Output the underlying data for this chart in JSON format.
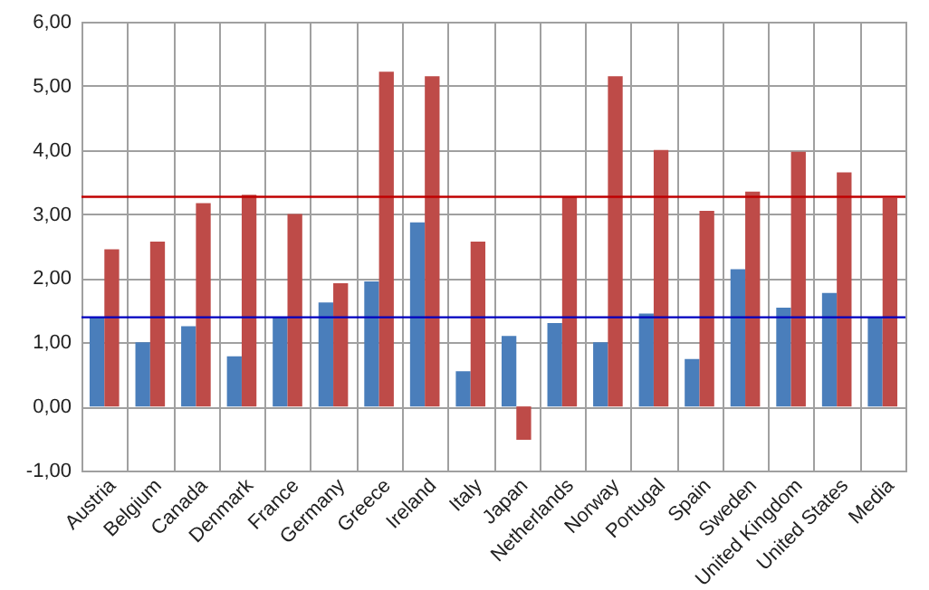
{
  "chart_data": {
    "type": "bar",
    "categories": [
      "Austria",
      "Belgium",
      "Canada",
      "Denmark",
      "France",
      "Germany",
      "Greece",
      "Ireland",
      "Italy",
      "Japan",
      "Netherlands",
      "Norway",
      "Portugal",
      "Spain",
      "Sweden",
      "United Kingdom",
      "United States",
      "Media"
    ],
    "series": [
      {
        "color": "#4a7ebb",
        "values": [
          1.4,
          1.0,
          1.25,
          0.78,
          1.4,
          1.62,
          1.95,
          2.87,
          0.55,
          1.1,
          1.3,
          1.0,
          1.45,
          0.74,
          2.14,
          1.54,
          1.77,
          1.4
        ]
      },
      {
        "color": "#be4b48",
        "values": [
          2.45,
          2.57,
          3.17,
          3.3,
          3.0,
          1.92,
          5.22,
          5.15,
          2.57,
          -0.52,
          3.27,
          5.15,
          4.0,
          3.05,
          3.35,
          3.97,
          3.65,
          3.25
        ]
      }
    ],
    "ylim": [
      -1,
      6
    ],
    "yticks": [
      {
        "value": -1,
        "label": "-1,00"
      },
      {
        "value": 0,
        "label": "0,00"
      },
      {
        "value": 1,
        "label": "1,00"
      },
      {
        "value": 2,
        "label": "2,00"
      },
      {
        "value": 3,
        "label": "3,00"
      },
      {
        "value": 4,
        "label": "4,00"
      },
      {
        "value": 5,
        "label": "5,00"
      },
      {
        "value": 6,
        "label": "6,00"
      }
    ],
    "ref_lines": [
      {
        "axis": "y",
        "value": 3.27,
        "color": "#c00000"
      },
      {
        "axis": "y",
        "value": 1.39,
        "color": "#0000c0"
      }
    ],
    "grid": true
  }
}
